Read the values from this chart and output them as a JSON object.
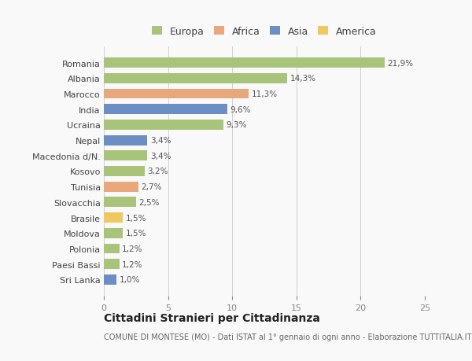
{
  "countries": [
    "Romania",
    "Albania",
    "Marocco",
    "India",
    "Ucraina",
    "Nepal",
    "Macedonia d/N.",
    "Kosovo",
    "Tunisia",
    "Slovacchia",
    "Brasile",
    "Moldova",
    "Polonia",
    "Paesi Bassi",
    "Sri Lanka"
  ],
  "values": [
    21.9,
    14.3,
    11.3,
    9.6,
    9.3,
    3.4,
    3.4,
    3.2,
    2.7,
    2.5,
    1.5,
    1.5,
    1.2,
    1.2,
    1.0
  ],
  "labels": [
    "21,9%",
    "14,3%",
    "11,3%",
    "9,6%",
    "9,3%",
    "3,4%",
    "3,4%",
    "3,2%",
    "2,7%",
    "2,5%",
    "1,5%",
    "1,5%",
    "1,2%",
    "1,2%",
    "1,0%"
  ],
  "colors": [
    "#a8c47a",
    "#a8c47a",
    "#e8a87c",
    "#6b8fc4",
    "#a8c47a",
    "#6b8fc4",
    "#a8c47a",
    "#a8c47a",
    "#e8a87c",
    "#a8c47a",
    "#f0c860",
    "#a8c47a",
    "#a8c47a",
    "#a8c47a",
    "#6b8fc4"
  ],
  "legend": [
    {
      "label": "Europa",
      "color": "#a8c47a"
    },
    {
      "label": "Africa",
      "color": "#e8a87c"
    },
    {
      "label": "Asia",
      "color": "#6b8fc4"
    },
    {
      "label": "America",
      "color": "#f0c860"
    }
  ],
  "xlim": [
    0,
    25
  ],
  "xticks": [
    0,
    5,
    10,
    15,
    20,
    25
  ],
  "title": "Cittadini Stranieri per Cittadinanza",
  "subtitle": "COMUNE DI MONTESE (MO) - Dati ISTAT al 1° gennaio di ogni anno - Elaborazione TUTTITALIA.IT",
  "bg_color": "#f9f9f9",
  "bar_height": 0.65,
  "label_fontsize": 7.5,
  "ytick_fontsize": 8,
  "xtick_fontsize": 8,
  "title_fontsize": 10,
  "subtitle_fontsize": 7
}
